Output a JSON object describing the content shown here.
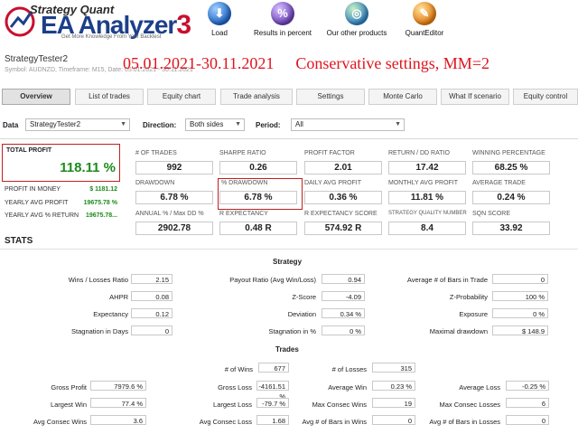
{
  "header": {
    "logo": {
      "brand": "Strategy Quant",
      "product": "EA Analyzer",
      "version": "3",
      "tagline": "Get More Knowledge   From Your Backtest"
    },
    "toolbar": [
      {
        "label": "Load",
        "icon": "download-icon"
      },
      {
        "label": "Results in percent",
        "icon": "percent-icon"
      },
      {
        "label": "Our other products",
        "icon": "globe-icon"
      },
      {
        "label": "QuantEditor",
        "icon": "pencil-icon"
      }
    ]
  },
  "report": {
    "tester_name": "StrategyTester2",
    "symbol_line": "Symbol: AUDNZD, Timeframe: M15, Date: 05.01.2021 - 30.11.2021",
    "date_range": "05.01.2021-30.11.2021",
    "settings": "Conservative settings, MM=2"
  },
  "tabs": [
    "Overview",
    "List of trades",
    "Equity chart",
    "Trade analysis",
    "Settings",
    "Monte Carlo",
    "What If scenario",
    "Equity control"
  ],
  "filters": {
    "data_label": "Data",
    "data_value": "StrategyTester2",
    "direction_label": "Direction:",
    "direction_value": "Both sides",
    "period_label": "Period:",
    "period_value": "All"
  },
  "summary": {
    "total_profit_label": "TOTAL PROFIT",
    "total_profit": "118.11 %",
    "profit_money_label": "PROFIT IN MONEY",
    "profit_money": "$ 1181.12",
    "yearly_avg_profit_label": "YEARLY AVG PROFIT",
    "yearly_avg_profit": "19675.78 %",
    "yearly_avg_return_label": "YEARLY AVG % RETURN",
    "yearly_avg_return": "19675.78..."
  },
  "metrics": [
    {
      "label": "# OF TRADES",
      "value": "992"
    },
    {
      "label": "SHARPE RATIO",
      "value": "0.26"
    },
    {
      "label": "PROFIT FACTOR",
      "value": "2.01"
    },
    {
      "label": "RETURN / DD RATIO",
      "value": "17.42"
    },
    {
      "label": "WINNING PERCENTAGE",
      "value": "68.25 %"
    },
    {
      "label": "DRAWDOWN",
      "value": "6.78 %"
    },
    {
      "label": "% DRAWDOWN",
      "value": "6.78 %"
    },
    {
      "label": "DAILY AVG PROFIT",
      "value": "0.36 %"
    },
    {
      "label": "MONTHLY AVG PROFIT",
      "value": "11.81 %"
    },
    {
      "label": "AVERAGE TRADE",
      "value": "0.24 %"
    },
    {
      "label": "ANNUAL % / Max DD %",
      "value": "2902.78"
    },
    {
      "label": "R EXPECTANCY",
      "value": "0.48 R"
    },
    {
      "label": "R EXPECTANCY SCORE",
      "value": "574.92 R"
    },
    {
      "label": "STRATEGY QUALITY NUMBER",
      "value": "8.4"
    },
    {
      "label": "SQN SCORE",
      "value": "33.92"
    }
  ],
  "stats": {
    "title": "STATS",
    "strategy_title": "Strategy",
    "strategy": [
      {
        "label": "Wins / Losses Ratio",
        "value": "2.15"
      },
      {
        "label": "Payout Ratio (Avg Win/Loss)",
        "value": "0.94"
      },
      {
        "label": "Average # of Bars in Trade",
        "value": "0"
      },
      {
        "label": "AHPR",
        "value": "0.08"
      },
      {
        "label": "Z-Score",
        "value": "-4.09"
      },
      {
        "label": "Z-Probability",
        "value": "100 %"
      },
      {
        "label": "Expectancy",
        "value": "0.12"
      },
      {
        "label": "Deviation",
        "value": "0.34 %"
      },
      {
        "label": "Exposure",
        "value": "0 %"
      },
      {
        "label": "Stagnation in Days",
        "value": "0"
      },
      {
        "label": "Stagnation in %",
        "value": "0 %"
      },
      {
        "label": "Maximal drawdown",
        "value": "$ 148.9"
      }
    ],
    "trades_title": "Trades",
    "trades_top": [
      {
        "label": "# of Wins",
        "value": "677"
      },
      {
        "label": "# of Losses",
        "value": "315"
      }
    ],
    "trades": [
      {
        "label": "Gross Profit",
        "value": "7979.6 %"
      },
      {
        "label": "Gross Loss",
        "value": "-4161.51 %"
      },
      {
        "label": "Average Win",
        "value": "0.23 %"
      },
      {
        "label": "Average Loss",
        "value": "-0.25 %"
      },
      {
        "label": "Largest Win",
        "value": "77.4 %"
      },
      {
        "label": "Largest Loss",
        "value": "-79.7 %"
      },
      {
        "label": "Max Consec Wins",
        "value": "19"
      },
      {
        "label": "Max Consec Losses",
        "value": "6"
      },
      {
        "label": "Avg Consec Wins",
        "value": "3.6"
      },
      {
        "label": "Avg Consec Loss",
        "value": "1.68"
      },
      {
        "label": "Avg # of Bars in Wins",
        "value": "0"
      },
      {
        "label": "Avg # of Bars in Losses",
        "value": "0"
      }
    ]
  },
  "colors": {
    "accent_red": "#e0141e",
    "profit_green": "#1d8a1d",
    "brand_blue": "#1d3f8a"
  }
}
